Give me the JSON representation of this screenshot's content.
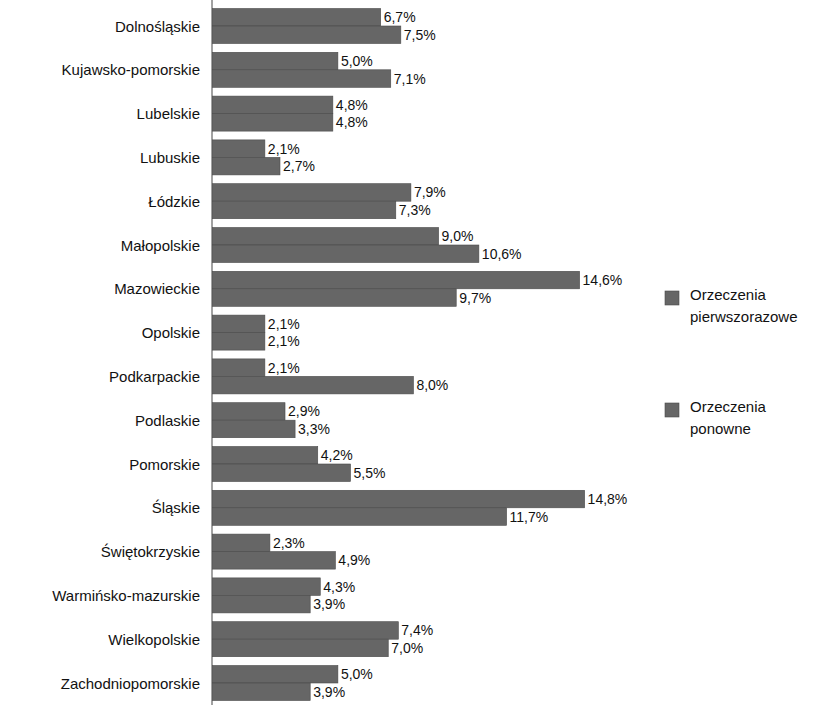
{
  "chart_data": {
    "type": "bar",
    "orientation": "horizontal",
    "categories": [
      "Dolnośląskie",
      "Kujawsko-pomorskie",
      "Lubelskie",
      "Lubuskie",
      "Łódzkie",
      "Małopolskie",
      "Mazowieckie",
      "Opolskie",
      "Podkarpackie",
      "Podlaskie",
      "Pomorskie",
      "Śląskie",
      "Świętokrzyskie",
      "Warmińsko-mazurskie",
      "Wielkopolskie",
      "Zachodniopomorskie"
    ],
    "series": [
      {
        "name": "Orzeczenia pierwszorazowe",
        "color": "#666666",
        "values": [
          6.7,
          5.0,
          4.8,
          2.1,
          7.9,
          9.0,
          14.6,
          2.1,
          2.1,
          2.9,
          4.2,
          14.8,
          2.3,
          4.3,
          7.4,
          5.0
        ],
        "value_labels": [
          "6,7%",
          "5,0%",
          "4,8%",
          "2,1%",
          "7,9%",
          "9,0%",
          "14,6%",
          "2,1%",
          "2,1%",
          "2,9%",
          "4,2%",
          "14,8%",
          "2,3%",
          "4,3%",
          "7,4%",
          "5,0%"
        ]
      },
      {
        "name": "Orzeczenia ponowne",
        "color": "#666666",
        "values": [
          7.5,
          7.1,
          4.8,
          2.7,
          7.3,
          10.6,
          9.7,
          2.1,
          8.0,
          3.3,
          5.5,
          11.7,
          4.9,
          3.9,
          7.0,
          3.9
        ],
        "value_labels": [
          "7,5%",
          "7,1%",
          "4,8%",
          "2,7%",
          "7,3%",
          "10,6%",
          "9,7%",
          "2,1%",
          "8,0%",
          "3,3%",
          "5,5%",
          "11,7%",
          "4,9%",
          "3,9%",
          "7,0%",
          "3,9%"
        ]
      }
    ],
    "xlim": [
      0,
      17
    ],
    "data_labels": true,
    "tick_labels": "y",
    "legend": "right",
    "grid": false
  }
}
